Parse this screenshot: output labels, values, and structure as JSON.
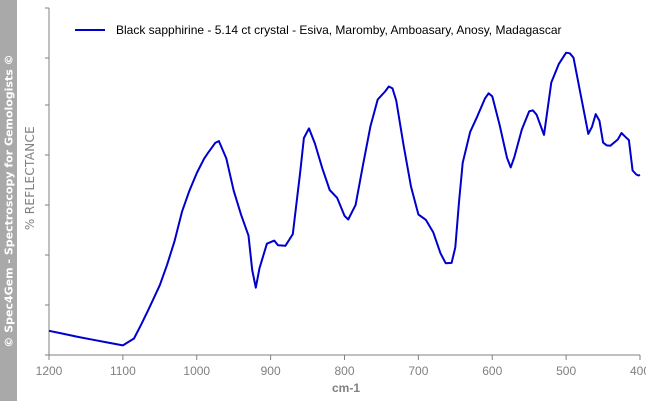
{
  "watermark": "© Spec4Gem - Spectroscopy for Gemologists ©",
  "chart_data": {
    "type": "line",
    "title": "",
    "xlabel": "cm-1",
    "ylabel": "% REFLECTANCE",
    "x_reversed": true,
    "xlim": [
      1200,
      400
    ],
    "ylim": [
      0,
      100
    ],
    "xticks": [
      1200,
      1100,
      1000,
      900,
      800,
      700,
      600,
      500,
      400
    ],
    "xtick_labels": [
      "1200",
      "1100",
      "1000",
      "900",
      "800",
      "700",
      "600",
      "500",
      "400"
    ],
    "y_tick_labels_shown": false,
    "grid": false,
    "legend_position": "top",
    "series": [
      {
        "name": "Black sapphirine - 5.14 ct crystal - Esiva, Maromby, Amboasary, Anosy, Madagascar",
        "color": "#0000cc",
        "x": [
          1200,
          1180,
          1160,
          1140,
          1120,
          1100,
          1085,
          1075,
          1065,
          1050,
          1040,
          1030,
          1020,
          1010,
          1000,
          990,
          985,
          975,
          970,
          960,
          950,
          940,
          930,
          925,
          920,
          915,
          905,
          895,
          890,
          880,
          870,
          860,
          855,
          848,
          840,
          830,
          820,
          810,
          800,
          795,
          785,
          775,
          765,
          755,
          745,
          740,
          735,
          730,
          720,
          710,
          700,
          690,
          680,
          670,
          663,
          655,
          650,
          645,
          640,
          630,
          620,
          610,
          605,
          600,
          590,
          580,
          575,
          570,
          560,
          550,
          545,
          540,
          530,
          520,
          510,
          500,
          495,
          490,
          480,
          470,
          465,
          460,
          455,
          450,
          445,
          440,
          430,
          425,
          420,
          415,
          410,
          405,
          402,
          400
        ],
        "y": [
          6.2,
          5.2,
          4.2,
          3.3,
          2.4,
          1.5,
          3.7,
          8.3,
          13.2,
          20.9,
          27.6,
          35.2,
          44.6,
          51.4,
          57.1,
          61.7,
          63.5,
          66.8,
          67.4,
          61.8,
          51.4,
          43.6,
          36.9,
          25.8,
          20.1,
          26.4,
          34.3,
          35.3,
          33.8,
          33.6,
          37.4,
          57.4,
          68.4,
          71.5,
          66.6,
          58.6,
          51.6,
          49.1,
          43.3,
          42.1,
          46.8,
          59.7,
          72.1,
          80.8,
          83.4,
          85.0,
          84.4,
          80.5,
          66.0,
          52.7,
          43.7,
          42.0,
          38.0,
          31.2,
          28.0,
          28.1,
          33.1,
          47.7,
          60.4,
          70.3,
          75.5,
          81.1,
          82.8,
          81.8,
          72.6,
          62.0,
          58.9,
          62.3,
          71.1,
          77.0,
          77.3,
          75.9,
          69.4,
          86.3,
          92.2,
          95.9,
          95.7,
          94.3,
          82.0,
          69.7,
          72.0,
          76.1,
          74.0,
          66.9,
          66.0,
          65.9,
          67.9,
          70.0,
          68.8,
          67.7,
          57.9,
          56.6,
          56.3,
          56.5
        ]
      }
    ]
  }
}
